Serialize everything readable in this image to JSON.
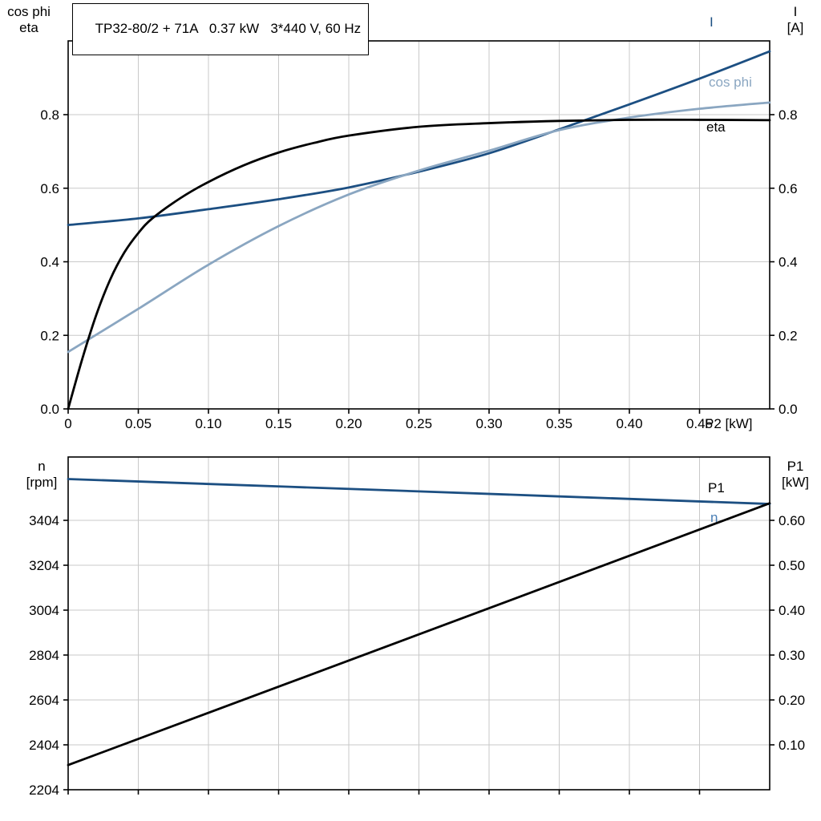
{
  "colors": {
    "grid": "#c9c9c9",
    "frame": "#000000",
    "dark_blue": "#1c4f82",
    "light_blue": "#8aa6c1",
    "n_label_blue": "#4a7fb5",
    "black": "#000000"
  },
  "chart_data": [
    {
      "id": "motor-electrical-chart",
      "type": "line",
      "title": "TP32-80/2 + 71A   0.37 kW   3*440 V, 60 Hz",
      "x_axis": {
        "label": "P2 [kW]",
        "range": [
          0,
          0.5
        ],
        "ticks": [
          0,
          0.05,
          0.1,
          0.15,
          0.2,
          0.25,
          0.3,
          0.35,
          0.4,
          0.45
        ],
        "tick_labels": [
          "0",
          "0.05",
          "0.10",
          "0.15",
          "0.20",
          "0.25",
          "0.30",
          "0.35",
          "0.40",
          "0.45"
        ],
        "grid": [
          0.05,
          0.1,
          0.15,
          0.2,
          0.25,
          0.3,
          0.35,
          0.4,
          0.45
        ]
      },
      "left_axis": {
        "label_lines": [
          "cos phi",
          "eta"
        ],
        "ticks": [
          0.0,
          0.2,
          0.4,
          0.6,
          0.8
        ],
        "tick_labels": [
          "0.0",
          "0.2",
          "0.4",
          "0.6",
          "0.8"
        ]
      },
      "right_axis": {
        "label_lines": [
          "I",
          "[A]"
        ],
        "ticks": [
          0.0,
          0.2,
          0.4,
          0.6,
          0.8
        ],
        "tick_labels": [
          "0.0",
          "0.2",
          "0.4",
          "0.6",
          "0.8"
        ]
      },
      "series": [
        {
          "name": "I",
          "label": "I",
          "axis": "left",
          "color": "#1c4f82",
          "label_color": "#1c4f82",
          "points": [
            [
              0,
              0.5
            ],
            [
              0.05,
              0.518
            ],
            [
              0.1,
              0.543
            ],
            [
              0.15,
              0.57
            ],
            [
              0.2,
              0.602
            ],
            [
              0.25,
              0.645
            ],
            [
              0.3,
              0.695
            ],
            [
              0.35,
              0.76
            ],
            [
              0.4,
              0.828
            ],
            [
              0.45,
              0.898
            ],
            [
              0.5,
              0.972
            ]
          ]
        },
        {
          "name": "cos-phi",
          "label": "cos phi",
          "axis": "left",
          "color": "#8aa6c1",
          "label_color": "#8aa6c1",
          "points": [
            [
              0,
              0.155
            ],
            [
              0.05,
              0.272
            ],
            [
              0.1,
              0.392
            ],
            [
              0.15,
              0.497
            ],
            [
              0.2,
              0.583
            ],
            [
              0.25,
              0.648
            ],
            [
              0.3,
              0.702
            ],
            [
              0.35,
              0.758
            ],
            [
              0.4,
              0.792
            ],
            [
              0.45,
              0.816
            ],
            [
              0.5,
              0.833
            ]
          ]
        },
        {
          "name": "eta",
          "label": "eta",
          "axis": "left",
          "color": "#000000",
          "label_color": "#000000",
          "points": [
            [
              0,
              0.0
            ],
            [
              0.01,
              0.135
            ],
            [
              0.02,
              0.255
            ],
            [
              0.03,
              0.352
            ],
            [
              0.04,
              0.425
            ],
            [
              0.05,
              0.478
            ],
            [
              0.06,
              0.518
            ],
            [
              0.08,
              0.573
            ],
            [
              0.1,
              0.617
            ],
            [
              0.125,
              0.662
            ],
            [
              0.15,
              0.697
            ],
            [
              0.175,
              0.723
            ],
            [
              0.2,
              0.743
            ],
            [
              0.25,
              0.767
            ],
            [
              0.3,
              0.777
            ],
            [
              0.35,
              0.783
            ],
            [
              0.4,
              0.786
            ],
            [
              0.45,
              0.786
            ],
            [
              0.5,
              0.785
            ]
          ]
        }
      ]
    },
    {
      "id": "speed-power-chart",
      "type": "line",
      "x_axis": {
        "range": [
          0,
          0.5
        ],
        "ticks": [
          0,
          0.05,
          0.1,
          0.15,
          0.2,
          0.25,
          0.3,
          0.35,
          0.4,
          0.45
        ],
        "grid": [
          0.05,
          0.1,
          0.15,
          0.2,
          0.25,
          0.3,
          0.35,
          0.4,
          0.45
        ]
      },
      "left_axis": {
        "label_lines": [
          "n",
          "[rpm]"
        ],
        "ticks": [
          2204,
          2404,
          2604,
          2804,
          3004,
          3204,
          3404
        ],
        "tick_labels": [
          "2204",
          "2404",
          "2604",
          "2804",
          "3004",
          "3204",
          "3404"
        ]
      },
      "right_axis": {
        "label_lines": [
          "P1",
          "[kW]"
        ],
        "ticks": [
          0.1,
          0.2,
          0.3,
          0.4,
          0.5,
          0.6
        ],
        "tick_labels": [
          "0.10",
          "0.20",
          "0.30",
          "0.40",
          "0.50",
          "0.60"
        ]
      },
      "series": [
        {
          "name": "n",
          "label": "n",
          "axis": "left",
          "color": "#1c4f82",
          "label_color": "#4a7fb5",
          "points": [
            [
              0,
              3588
            ],
            [
              0.25,
              3533
            ],
            [
              0.5,
              3477
            ]
          ]
        },
        {
          "name": "P1",
          "label": "P1",
          "axis": "right",
          "color": "#000000",
          "label_color": "#000000",
          "points": [
            [
              0,
              0.055
            ],
            [
              0.25,
              0.346
            ],
            [
              0.5,
              0.638
            ]
          ]
        }
      ]
    }
  ]
}
